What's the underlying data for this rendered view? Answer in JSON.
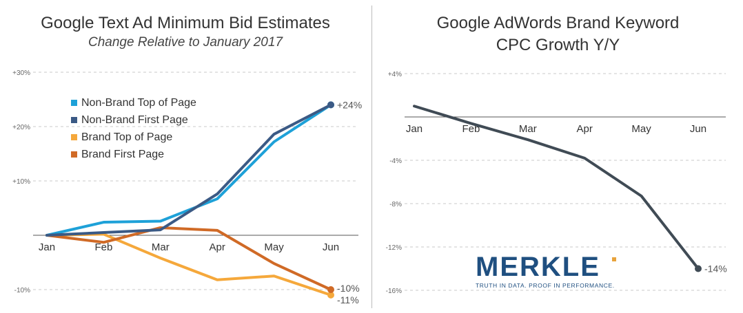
{
  "chart_data": [
    {
      "type": "line",
      "title": "Google Text Ad Minimum Bid Estimates",
      "subtitle": "Change Relative to January 2017",
      "categories": [
        "Jan",
        "Feb",
        "Mar",
        "Apr",
        "May",
        "Jun"
      ],
      "y_tick_labels": [
        "+30%",
        "+20%",
        "+10%",
        "-10%"
      ],
      "ylim": [
        -10,
        30
      ],
      "grid": "horizontal dashed",
      "legend_position": "upper-left",
      "series": [
        {
          "name": "Non-Brand Top of Page",
          "color": "#1ea1d8",
          "values": [
            0,
            2.4,
            2.6,
            6.7,
            17.2,
            24
          ]
        },
        {
          "name": "Non-Brand First Page",
          "color": "#3b5a85",
          "values": [
            0,
            0.5,
            1.0,
            7.6,
            18.6,
            24
          ]
        },
        {
          "name": "Brand Top of Page",
          "color": "#f5a83b",
          "values": [
            0,
            0.2,
            -4.2,
            -8.2,
            -7.5,
            -11
          ]
        },
        {
          "name": "Brand First Page",
          "color": "#d06a26",
          "values": [
            0,
            -1.3,
            1.4,
            0.9,
            -5.2,
            -10
          ]
        }
      ],
      "annotations": [
        "+24%",
        "-10%",
        "-11%"
      ]
    },
    {
      "type": "line",
      "title": "Google AdWords Brand Keyword CPC Growth Y/Y",
      "title_lines": [
        "Google AdWords Brand Keyword",
        "CPC Growth Y/Y"
      ],
      "categories": [
        "Jan",
        "Feb",
        "Mar",
        "Apr",
        "May",
        "Jun"
      ],
      "y_tick_labels": [
        "+4%",
        "-4%",
        "-8%",
        "-12%",
        "-16%"
      ],
      "ylim": [
        -16,
        4
      ],
      "grid": "horizontal dashed",
      "series": [
        {
          "color": "#404b55",
          "values": [
            1.0,
            -0.6,
            -2.1,
            -3.8,
            -7.3,
            -14
          ]
        }
      ],
      "annotations": [
        "-14%"
      ]
    }
  ],
  "logo": {
    "word": "MERKLE",
    "tagline": "TRUTH IN DATA. PROOF IN PERFORMANCE.",
    "color": "#1f4f80",
    "accent": "#e8a33c"
  }
}
